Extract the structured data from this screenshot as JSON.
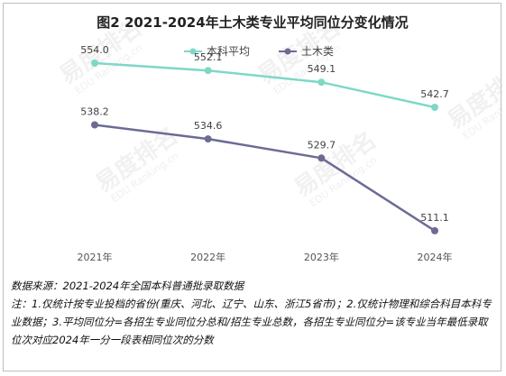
{
  "chart_data": {
    "type": "line",
    "title": "图2 2021-2024年土木类专业平均同位分变化情况",
    "categories": [
      "2021年",
      "2022年",
      "2023年",
      "2024年"
    ],
    "series": [
      {
        "name": "本科平均",
        "color": "#7fd8c6",
        "values": [
          554.0,
          552.1,
          549.1,
          542.7
        ]
      },
      {
        "name": "土木类",
        "color": "#6b6b95",
        "values": [
          538.2,
          534.6,
          529.7,
          511.1
        ]
      }
    ],
    "xlabel": "",
    "ylabel": "",
    "ylim": [
      500,
      560
    ],
    "grid": false,
    "legend": "top-right"
  },
  "watermark": {
    "brand": "易度排名",
    "brand_en": "EDU Ranking.cn"
  },
  "notes": {
    "source": "数据来源：2021-2024年全国本科普通批录取数据",
    "footnote": "注：1.仅统计按专业投档的省份(重庆、河北、辽宁、山东、浙江5省市)；2.仅统计物理和综合科目本科专业数据；3.平均同位分=各招生专业同位分总和/招生专业总数，各招生专业同位分=该专业当年最低录取位次对应2024年一分一段表相同位次的分数"
  }
}
